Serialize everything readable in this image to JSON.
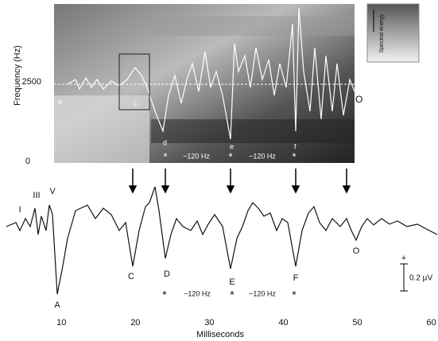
{
  "spectrogram": {
    "y_label": "Frequency (Hz)",
    "y_tick_labels": [
      "2500",
      "0"
    ],
    "legend_label": "Spectral energy",
    "point_labels": [
      "a",
      "c",
      "d",
      "e",
      "f",
      "O"
    ],
    "stars": [
      "*",
      "*",
      "*"
    ],
    "intervals": [
      "~120 Hz",
      "~120 Hz"
    ]
  },
  "waveform": {
    "peak_labels": [
      "I",
      "III",
      "V",
      "A",
      "C",
      "D",
      "E",
      "F",
      "O"
    ],
    "stars": [
      "*",
      "*",
      "*"
    ],
    "intervals": [
      "~120 Hz",
      "~120 Hz"
    ],
    "scale_sign": "+",
    "scale_label": "0.2 µV",
    "x_label": "Milliseconds",
    "xlim": [
      1.7,
      60.9
    ],
    "xticks": [
      10,
      20,
      30,
      40,
      50,
      60
    ]
  }
}
